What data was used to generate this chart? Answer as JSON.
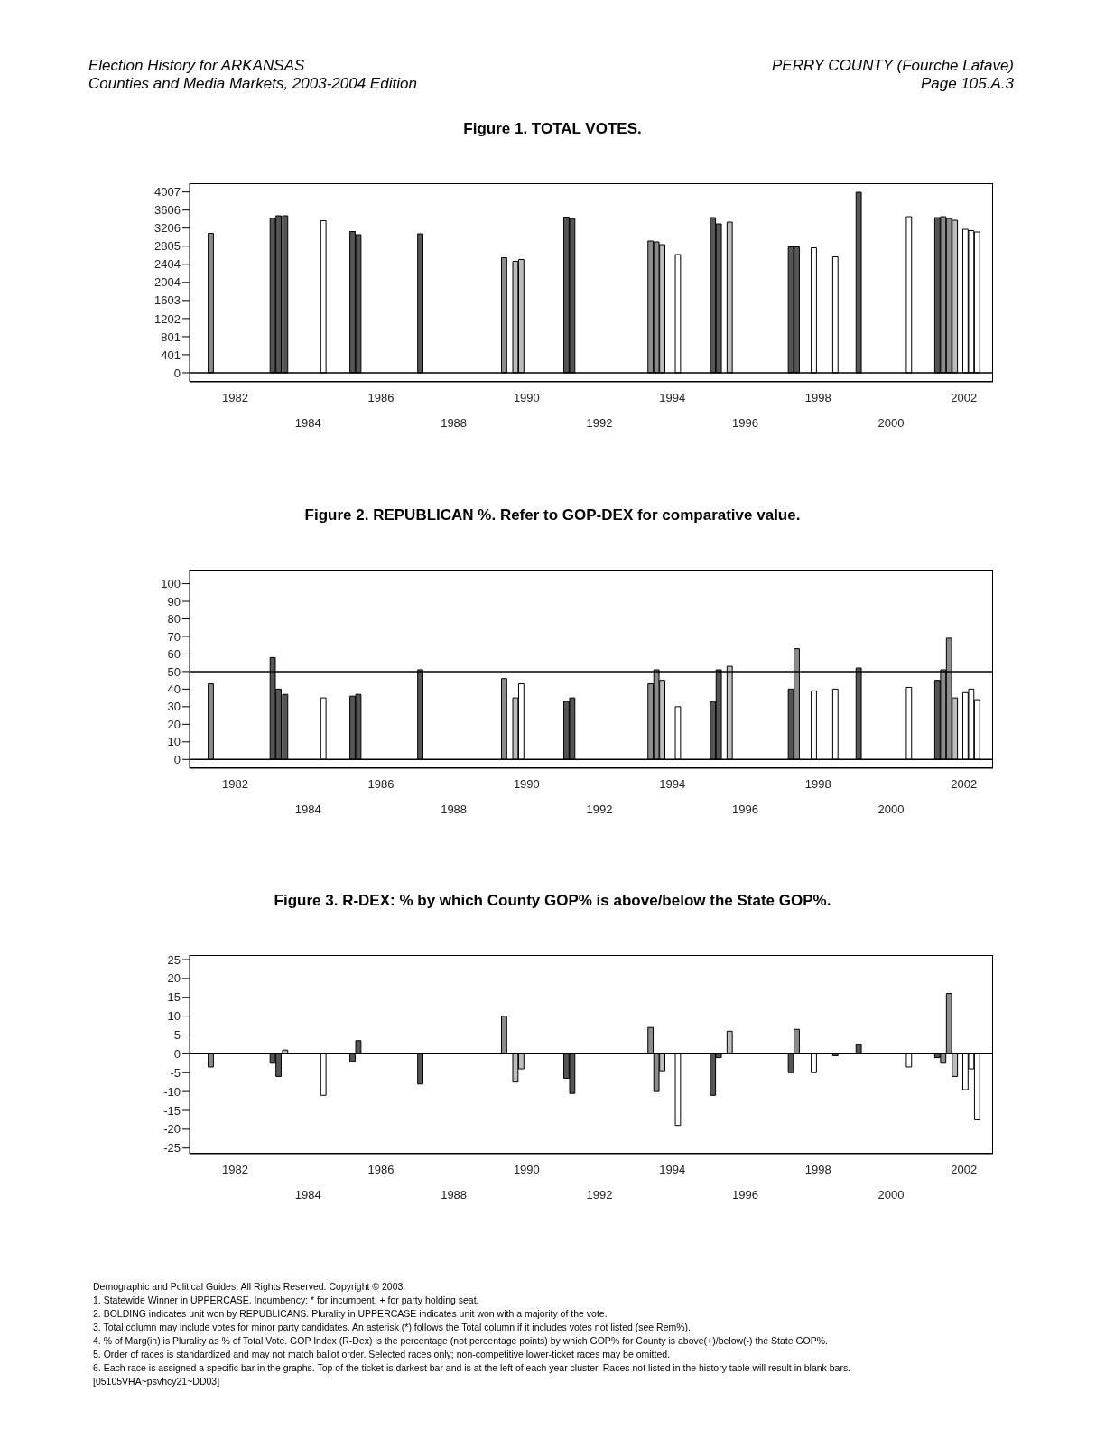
{
  "chart_data": [
    {
      "type": "bar",
      "title": "Figure 1. TOTAL VOTES.",
      "annotations": [
        "Election History for ARKANSAS",
        "PERRY COUNTY (Fourche Lafave)",
        "Counties and Media Markets, 2003-2004 Edition",
        "Page 105.A.3"
      ],
      "x": [
        1981.34,
        1983.04,
        1983.2,
        1983.38,
        1984.43,
        1985.23,
        1985.39,
        1987.09,
        1989.39,
        1989.7,
        1989.86,
        1991.1,
        1991.26,
        1993.41,
        1993.57,
        1993.73,
        1994.16,
        1995.12,
        1995.28,
        1995.58,
        1997.26,
        1997.42,
        1997.89,
        1998.48,
        1999.12,
        2000.5,
        2001.28,
        2001.44,
        2001.6,
        2001.76,
        2002.05,
        2002.21,
        2002.37
      ],
      "values": [
        3090,
        3430,
        3480,
        3480,
        3370,
        3130,
        3060,
        3080,
        2550,
        2470,
        2510,
        3450,
        3420,
        2920,
        2900,
        2840,
        2620,
        3440,
        3300,
        3340,
        2790,
        2790,
        2770,
        2570,
        4000,
        3460,
        3440,
        3460,
        3420,
        3380,
        3180,
        3150,
        3120
      ],
      "colors": [
        "#8c8c8c",
        "#555555",
        "#555555",
        "#555555",
        "#ffffff",
        "#555555",
        "#555555",
        "#555555",
        "#8c8c8c",
        "#bdbdbd",
        "#bdbdbd",
        "#555555",
        "#555555",
        "#8c8c8c",
        "#8c8c8c",
        "#bdbdbd",
        "#ffffff",
        "#555555",
        "#555555",
        "#bdbdbd",
        "#555555",
        "#555555",
        "#ffffff",
        "#ffffff",
        "#555555",
        "#ffffff",
        "#555555",
        "#8c8c8c",
        "#8c8c8c",
        "#bdbdbd",
        "#ffffff",
        "#ffffff",
        "#ffffff"
      ],
      "xlim": [
        1980.75,
        2002.8
      ],
      "xticks": [
        1982,
        1986,
        1990,
        1994,
        1998,
        2002
      ],
      "x2lim": [
        1980.75,
        2002.8
      ],
      "x2ticks": [
        1984,
        1988,
        1992,
        1996,
        2000
      ],
      "ylim": [
        -200,
        4200
      ],
      "yticks": [
        0,
        401,
        801,
        1202,
        1603,
        2004,
        2404,
        2805,
        3206,
        3606,
        4007
      ],
      "ref_lines": [
        {
          "axis": "y",
          "value": 0,
          "color": "#000000"
        }
      ]
    },
    {
      "type": "bar",
      "title": "Figure 2. REPUBLICAN %. Refer to GOP-DEX for comparative value.",
      "x": [
        1981.34,
        1983.04,
        1983.2,
        1983.38,
        1984.43,
        1985.23,
        1985.39,
        1987.09,
        1989.39,
        1989.7,
        1989.86,
        1991.1,
        1991.26,
        1993.41,
        1993.57,
        1993.73,
        1994.16,
        1995.12,
        1995.28,
        1995.58,
        1997.26,
        1997.42,
        1997.89,
        1998.48,
        1999.12,
        2000.5,
        2001.28,
        2001.44,
        2001.6,
        2001.76,
        2002.05,
        2002.21,
        2002.37
      ],
      "values": [
        43,
        58,
        40,
        37,
        35,
        36,
        37,
        51,
        46,
        35,
        43,
        33,
        35,
        43,
        51,
        45,
        30,
        33,
        51,
        53,
        40,
        63,
        39,
        40,
        52,
        41,
        45,
        51,
        69,
        35,
        38,
        40,
        34
      ],
      "colors": [
        "#8c8c8c",
        "#555555",
        "#555555",
        "#555555",
        "#ffffff",
        "#555555",
        "#555555",
        "#555555",
        "#8c8c8c",
        "#bdbdbd",
        "#ffffff",
        "#555555",
        "#555555",
        "#8c8c8c",
        "#8c8c8c",
        "#bdbdbd",
        "#ffffff",
        "#555555",
        "#555555",
        "#bdbdbd",
        "#555555",
        "#8c8c8c",
        "#ffffff",
        "#ffffff",
        "#555555",
        "#ffffff",
        "#555555",
        "#8c8c8c",
        "#8c8c8c",
        "#bdbdbd",
        "#ffffff",
        "#ffffff",
        "#ffffff"
      ],
      "xlim": [
        1980.75,
        2002.8
      ],
      "xticks": [
        1982,
        1986,
        1990,
        1994,
        1998,
        2002
      ],
      "x2lim": [
        1980.75,
        2002.8
      ],
      "x2ticks": [
        1984,
        1988,
        1992,
        1996,
        2000
      ],
      "ylim": [
        -5,
        108
      ],
      "yticks": [
        0,
        10,
        20,
        30,
        40,
        50,
        60,
        70,
        80,
        90,
        100
      ],
      "ref_lines": [
        {
          "axis": "y",
          "value": 0,
          "color": "#000000"
        },
        {
          "axis": "y",
          "value": 50,
          "color": "#000000"
        }
      ]
    },
    {
      "type": "bar",
      "title": "Figure 3. R-DEX: % by which County GOP% is above/below the State GOP%.",
      "annotations": [
        "Demographic and Political Guides. All Rights Reserved. Copyright © 2003.",
        "1. Statewide Winner in UPPERCASE. Incumbency: * for incumbent, + for party holding seat.",
        "2. BOLDING indicates unit won by REPUBLICANS. Plurality in UPPERCASE indicates unit won with a majority of the vote.",
        "3. Total column may include votes for minor party candidates. An asterisk (*) follows the Total column if it includes votes not listed (see Rem%).",
        "4. % of Marg(in) is Plurality as % of Total Vote. GOP Index (R-Dex) is the percentage (not percentage points) by which GOP% for County is above(+)/below(-) the State GOP%.",
        "5. Order of races is standardized and may not match ballot order. Selected races only; non-competitive lower-ticket races may be omitted.",
        "6. Each race is assigned a specific bar in the graphs. Top of the ticket is darkest bar and is at the left of each year cluster. Races not listed in the history table will result in blank bars.",
        "[05105VHA~psvhcy21~DD03]"
      ],
      "x": [
        1981.34,
        1983.04,
        1983.2,
        1983.38,
        1984.43,
        1985.23,
        1985.39,
        1987.09,
        1989.39,
        1989.7,
        1989.86,
        1991.1,
        1991.26,
        1993.41,
        1993.57,
        1993.73,
        1994.16,
        1995.12,
        1995.28,
        1995.58,
        1997.26,
        1997.42,
        1997.89,
        1998.48,
        1999.12,
        2000.5,
        2001.28,
        2001.44,
        2001.6,
        2001.76,
        2002.05,
        2002.21,
        2002.37
      ],
      "values": [
        -3.5,
        -2.5,
        -6,
        1,
        -11,
        -2,
        3.5,
        -8,
        10,
        -7.5,
        -4,
        -6.5,
        -10.5,
        7,
        -10,
        -4.5,
        -19,
        -11,
        -1,
        6,
        -5,
        6.5,
        -5,
        -0.5,
        2.5,
        -3.5,
        -1,
        -2.5,
        16,
        -6,
        -9.5,
        -4,
        -17.5
      ],
      "colors": [
        "#8c8c8c",
        "#555555",
        "#555555",
        "#bdbdbd",
        "#ffffff",
        "#555555",
        "#555555",
        "#555555",
        "#8c8c8c",
        "#bdbdbd",
        "#bdbdbd",
        "#555555",
        "#555555",
        "#8c8c8c",
        "#8c8c8c",
        "#bdbdbd",
        "#ffffff",
        "#555555",
        "#555555",
        "#bdbdbd",
        "#555555",
        "#8c8c8c",
        "#ffffff",
        "#555555",
        "#555555",
        "#ffffff",
        "#555555",
        "#8c8c8c",
        "#8c8c8c",
        "#bdbdbd",
        "#ffffff",
        "#ffffff",
        "#ffffff"
      ],
      "xlim": [
        1980.75,
        2002.8
      ],
      "xticks": [
        1982,
        1986,
        1990,
        1994,
        1998,
        2002
      ],
      "x2lim": [
        1980.75,
        2002.8
      ],
      "x2ticks": [
        1984,
        1988,
        1992,
        1996,
        2000
      ],
      "ylim": [
        -26.5,
        26.2
      ],
      "yticks": [
        -25,
        -20,
        -15,
        -10,
        -5,
        0,
        5,
        10,
        15,
        20,
        25
      ],
      "ref_lines": [
        {
          "axis": "y",
          "value": 0,
          "color": "#000000"
        }
      ]
    }
  ]
}
